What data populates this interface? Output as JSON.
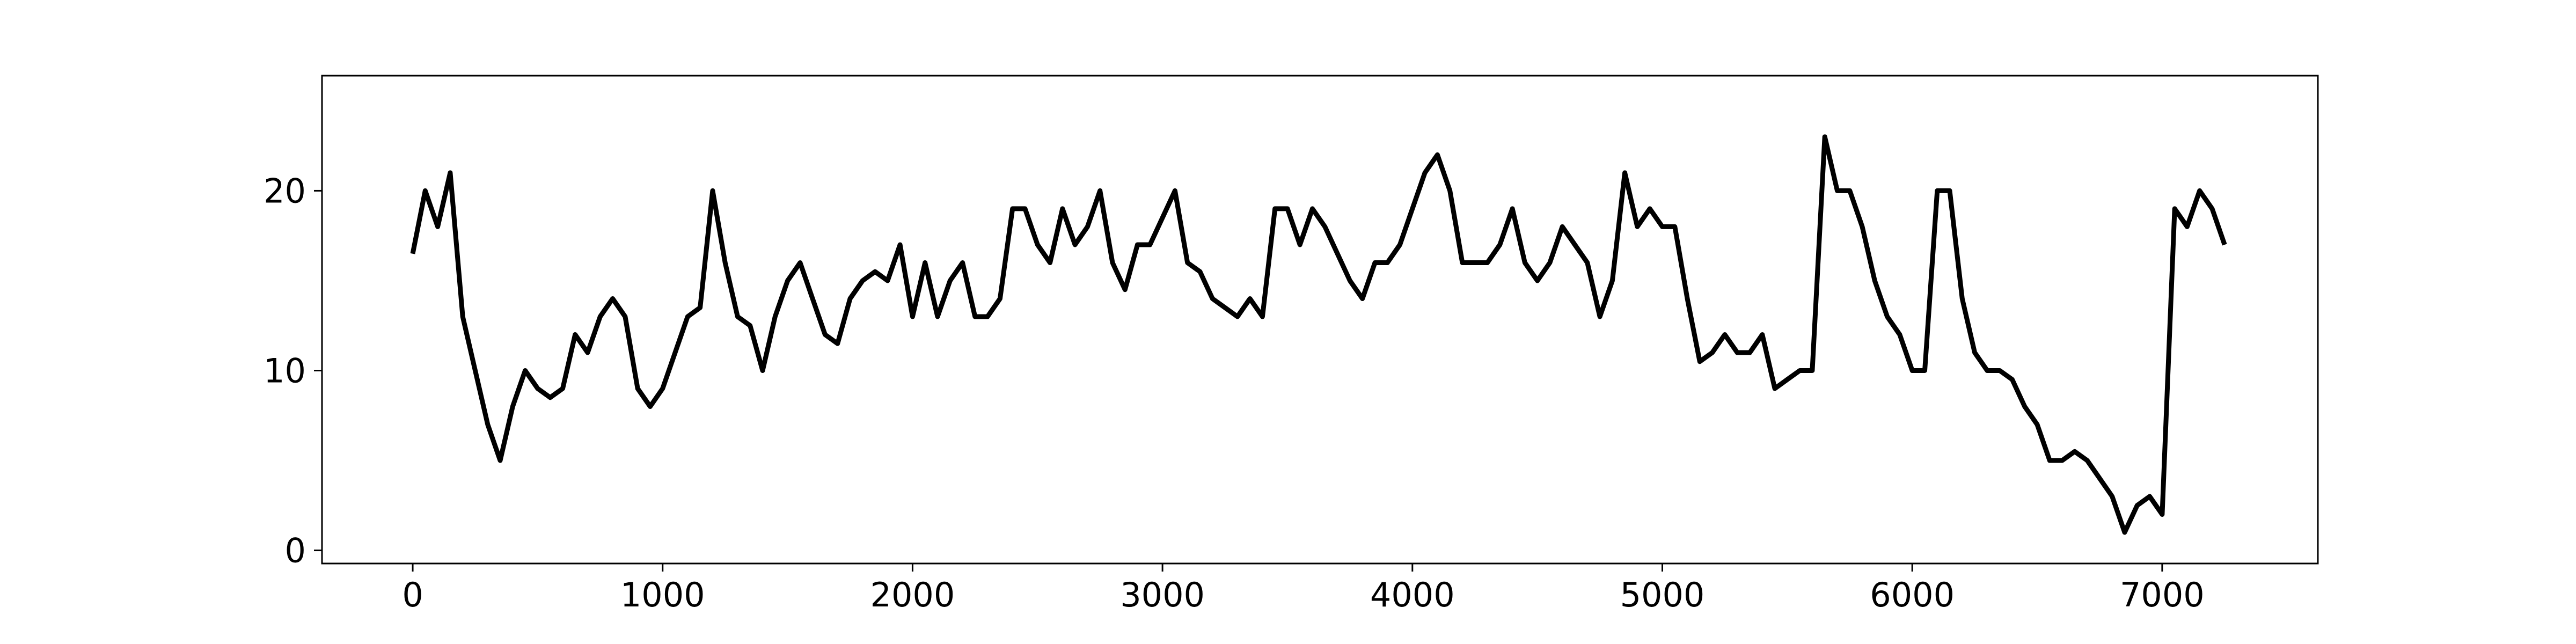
{
  "chart_data": {
    "type": "line",
    "color": "#000000",
    "grid": false,
    "x": [
      0,
      50,
      100,
      150,
      200,
      250,
      300,
      350,
      400,
      450,
      500,
      550,
      600,
      650,
      700,
      750,
      800,
      850,
      900,
      950,
      1000,
      1050,
      1100,
      1150,
      1200,
      1250,
      1300,
      1350,
      1400,
      1450,
      1500,
      1550,
      1600,
      1650,
      1700,
      1750,
      1800,
      1850,
      1900,
      1950,
      2000,
      2050,
      2100,
      2150,
      2200,
      2250,
      2300,
      2350,
      2400,
      2450,
      2500,
      2550,
      2600,
      2650,
      2700,
      2750,
      2800,
      2850,
      2900,
      2950,
      3000,
      3050,
      3100,
      3150,
      3200,
      3250,
      3300,
      3350,
      3400,
      3450,
      3500,
      3550,
      3600,
      3650,
      3700,
      3750,
      3800,
      3850,
      3900,
      3950,
      4000,
      4050,
      4100,
      4150,
      4200,
      4250,
      4300,
      4350,
      4400,
      4450,
      4500,
      4550,
      4600,
      4650,
      4700,
      4750,
      4800,
      4850,
      4900,
      4950,
      5000,
      5050,
      5100,
      5150,
      5200,
      5250,
      5300,
      5350,
      5400,
      5450,
      5500,
      5550,
      5600,
      5650,
      5700,
      5750,
      5800,
      5850,
      5900,
      5950,
      6000,
      6050,
      6100,
      6150,
      6200,
      6250,
      6300,
      6350,
      6400,
      6450,
      6500,
      6550,
      6600,
      6650,
      6700,
      6750,
      6800,
      6850,
      6900,
      6950,
      7000,
      7050,
      7100,
      7150,
      7200,
      7250
    ],
    "values": [
      16.5,
      20,
      18,
      21,
      13,
      10,
      7,
      5,
      8,
      10,
      9,
      8.5,
      9,
      12,
      11,
      13,
      14,
      13,
      9,
      8,
      9,
      11,
      13,
      13.5,
      20,
      16,
      13,
      12.5,
      10,
      13,
      15,
      16,
      14,
      12,
      11.5,
      14,
      15,
      15.5,
      15,
      17,
      13,
      16,
      13,
      15,
      16,
      13,
      13,
      14,
      19,
      19,
      17,
      16,
      19,
      17,
      18,
      20,
      16,
      14.5,
      17,
      17,
      18.5,
      20,
      16,
      15.5,
      14,
      13.5,
      13,
      14,
      13,
      19,
      19,
      17,
      19,
      18,
      16.5,
      15,
      14,
      16,
      16,
      17,
      19,
      21,
      22,
      20,
      16,
      16,
      16,
      17,
      19,
      16,
      15,
      16,
      18,
      17,
      16,
      13,
      15,
      21,
      18,
      19,
      18,
      18,
      14,
      10.5,
      11,
      12,
      11,
      11,
      12,
      9,
      9.5,
      10,
      10,
      23,
      20,
      20,
      18,
      15,
      13,
      12,
      10,
      10,
      20,
      20,
      14,
      11,
      10,
      10,
      9.5,
      8,
      7,
      5,
      5,
      5.5,
      5,
      4,
      3,
      1,
      2.5,
      3,
      2,
      19,
      18,
      20,
      19,
      17
    ],
    "xlim": [
      -363,
      7623
    ],
    "ylim": [
      -0.73,
      26.4
    ],
    "xticks": [
      0,
      1000,
      2000,
      3000,
      4000,
      5000,
      6000,
      7000
    ],
    "yticks": [
      0,
      10,
      20
    ]
  }
}
